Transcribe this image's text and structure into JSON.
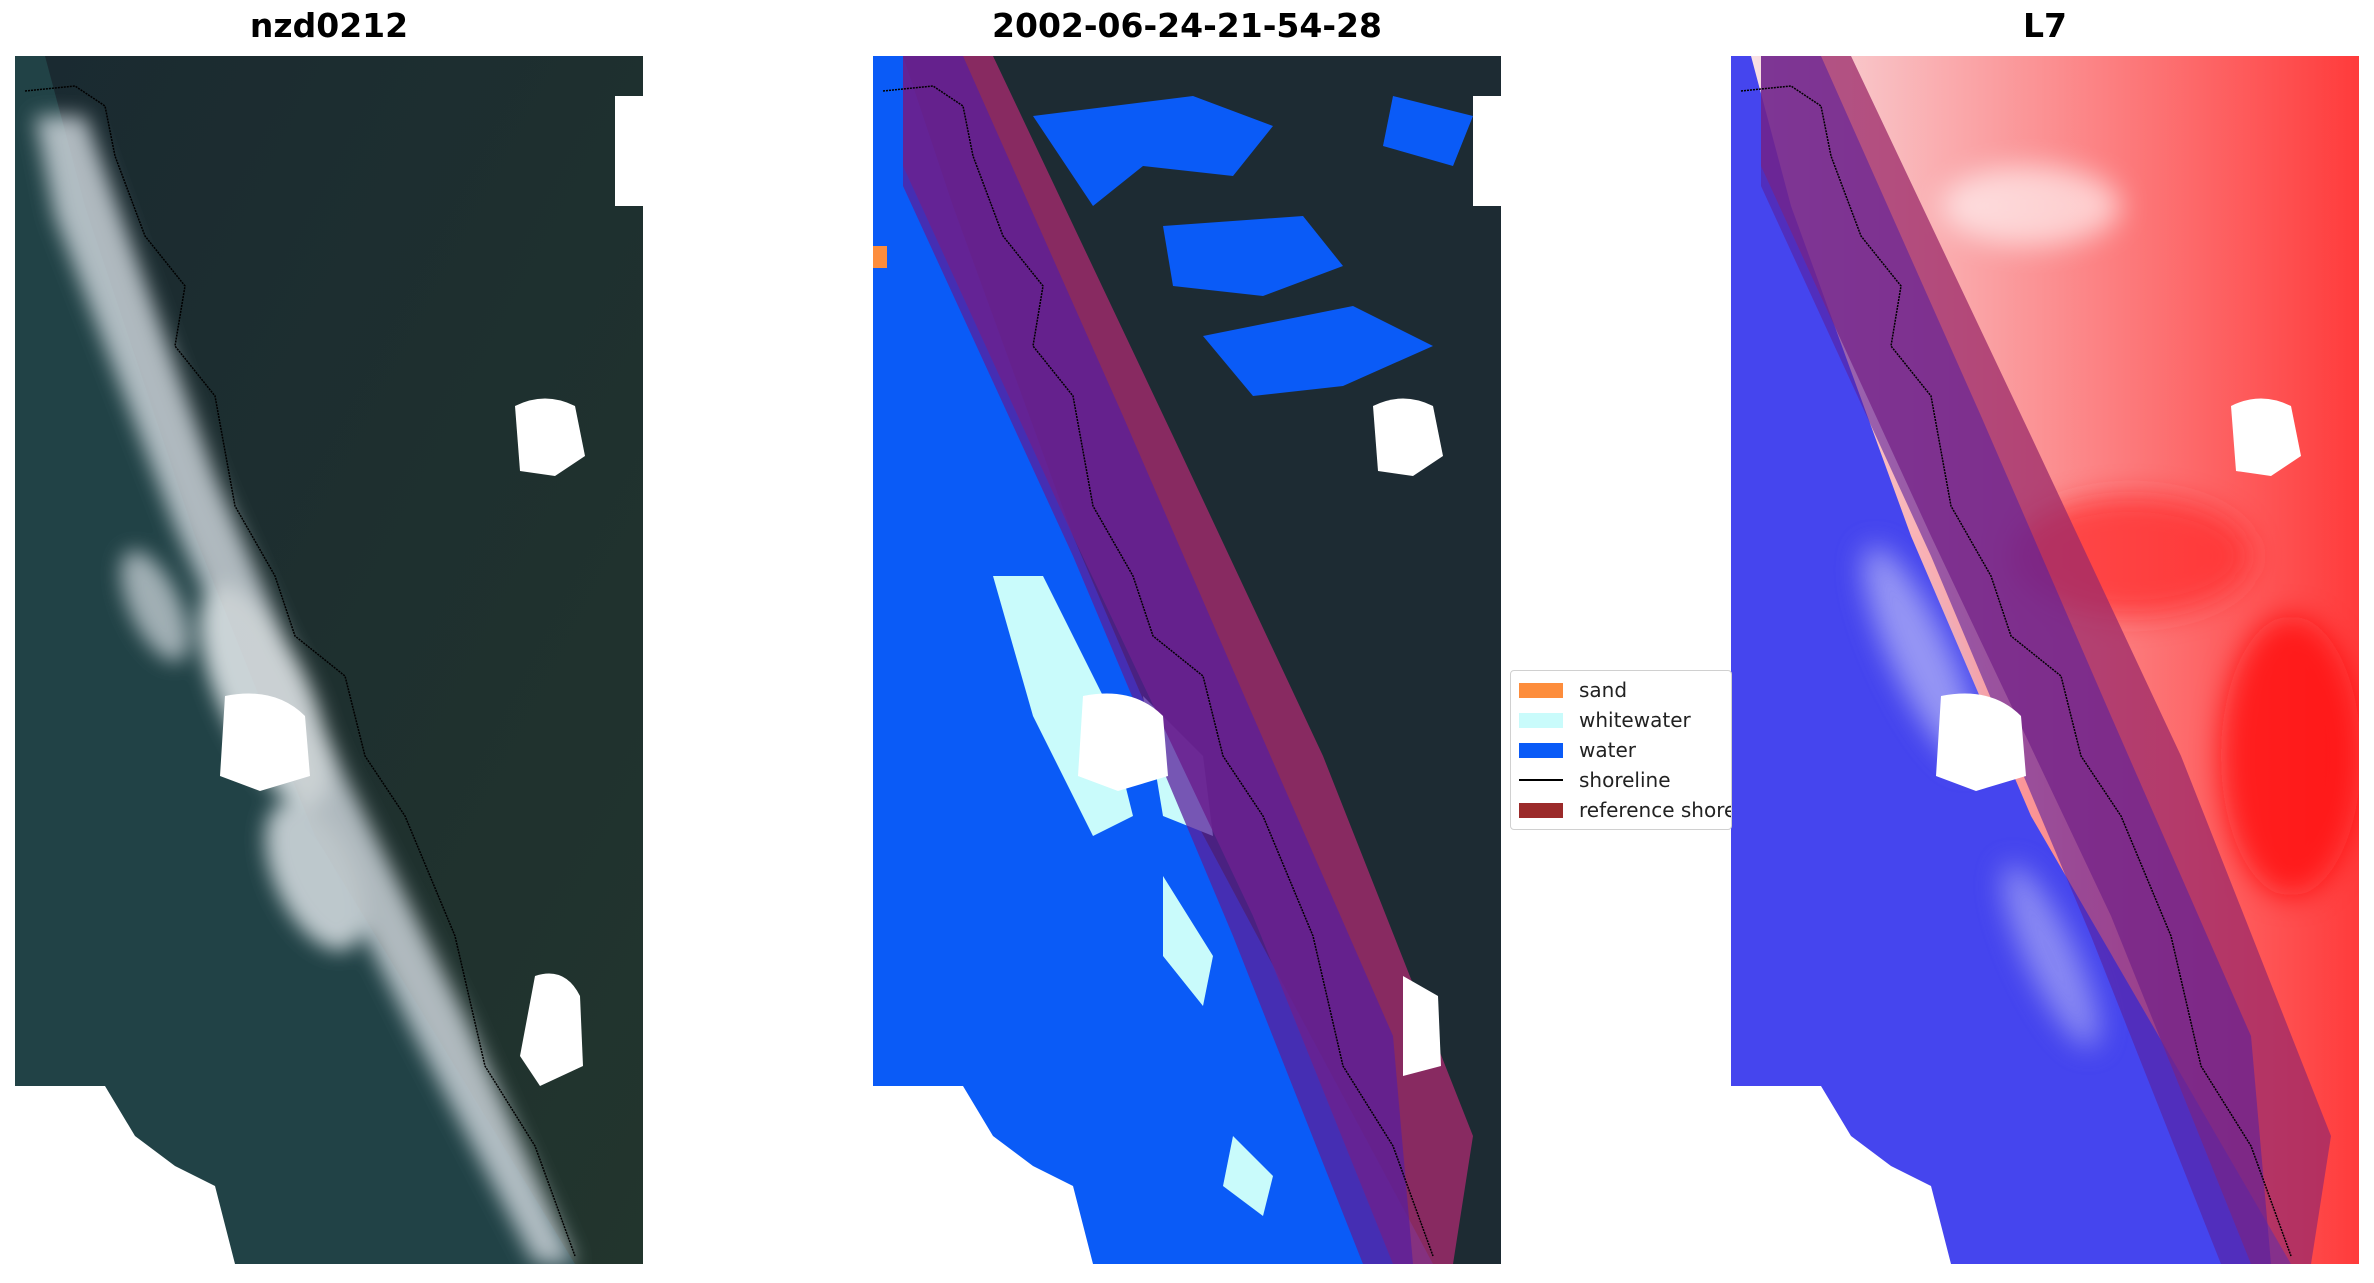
{
  "panels": [
    {
      "title": "nzd0212"
    },
    {
      "title": "2002-06-24-21-54-28"
    },
    {
      "title": "L7"
    }
  ],
  "legend": {
    "items": [
      {
        "label": "sand",
        "color": "#fd8d3c"
      },
      {
        "label": "whitewater",
        "color": "#c9fbfb"
      },
      {
        "label": "water",
        "color": "#0a5bf7"
      },
      {
        "label": "shoreline",
        "color": "#000000"
      },
      {
        "label": "reference shoreline buffer",
        "color": "#9b2a2a"
      }
    ]
  },
  "colors": {
    "land_dark": "#1d2b33",
    "sea_dark": "#1f4045",
    "surf_white": "#dfe6ea",
    "buffer_purple": "#5a1f9c",
    "index_red": "#ff2a2a",
    "index_blue": "#3a3af0"
  }
}
